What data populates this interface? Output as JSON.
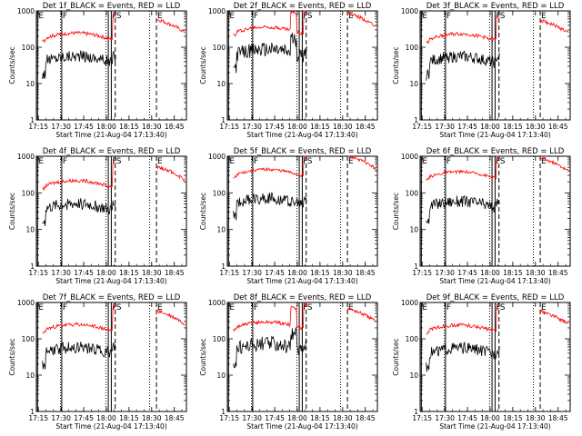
{
  "figure": {
    "background": "#ffffff",
    "axis_color": "#000000",
    "events_color": "#000000",
    "lld_color": "#ff0000"
  },
  "chart_data": [
    {
      "type": "line",
      "title": "Det 1f_BLACK = Events, RED = LLD",
      "xlabel": "Start Time (21-Aug-04 17:13:40)",
      "ylabel": "Counts/sec",
      "yscale": "log",
      "ylim": [
        1,
        1000
      ],
      "xticks": [
        "17:15",
        "17:30",
        "17:45",
        "18:00",
        "18:15",
        "18:30",
        "18:45"
      ],
      "yticks": [
        "1",
        "10",
        "100",
        "1000"
      ],
      "markers": [
        "E",
        "F",
        "F",
        "S",
        "E"
      ],
      "series": [
        {
          "name": "Events",
          "color": "#000000",
          "base": 40,
          "noise": 0.16,
          "spike": 0
        },
        {
          "name": "LLD",
          "color": "#ff0000",
          "base": 170,
          "noise": 0.05,
          "spike": 0
        }
      ]
    },
    {
      "type": "line",
      "title": "Det 2f_BLACK = Events, RED = LLD",
      "xlabel": "Start Time (21-Aug-04 17:13:40)",
      "ylabel": "Counts/sec",
      "yscale": "log",
      "ylim": [
        1,
        1000
      ],
      "xticks": [
        "17:15",
        "17:30",
        "17:45",
        "18:00",
        "18:15",
        "18:30",
        "18:45"
      ],
      "yticks": [
        "1",
        "10",
        "100",
        "1000"
      ],
      "markers": [
        "E",
        "F",
        "F",
        "S",
        "E"
      ],
      "series": [
        {
          "name": "Events",
          "color": "#000000",
          "base": 60,
          "noise": 0.2,
          "spike": 1
        },
        {
          "name": "LLD",
          "color": "#ff0000",
          "base": 250,
          "noise": 0.05,
          "spike": 1
        }
      ]
    },
    {
      "type": "line",
      "title": "Det 3f_BLACK = Events, RED = LLD",
      "xlabel": "Start Time (21-Aug-04 17:13:40)",
      "ylabel": "Counts/sec",
      "yscale": "log",
      "ylim": [
        1,
        1000
      ],
      "xticks": [
        "17:15",
        "17:30",
        "17:45",
        "18:00",
        "18:15",
        "18:30",
        "18:45"
      ],
      "yticks": [
        "1",
        "10",
        "100",
        "1000"
      ],
      "markers": [
        "E",
        "F",
        "F",
        "S",
        "E"
      ],
      "series": [
        {
          "name": "Events",
          "color": "#000000",
          "base": 38,
          "noise": 0.16,
          "spike": 0
        },
        {
          "name": "LLD",
          "color": "#ff0000",
          "base": 160,
          "noise": 0.05,
          "spike": 0
        }
      ]
    },
    {
      "type": "line",
      "title": "Det 4f_BLACK = Events, RED = LLD",
      "xlabel": "Start Time (21-Aug-04 17:13:40)",
      "ylabel": "Counts/sec",
      "yscale": "log",
      "ylim": [
        1,
        1000
      ],
      "xticks": [
        "17:15",
        "17:30",
        "17:45",
        "18:00",
        "18:15",
        "18:30",
        "18:45"
      ],
      "yticks": [
        "1",
        "10",
        "100",
        "1000"
      ],
      "markers": [
        "E",
        "F",
        "F",
        "S",
        "E"
      ],
      "series": [
        {
          "name": "Events",
          "color": "#000000",
          "base": 35,
          "noise": 0.16,
          "spike": 0
        },
        {
          "name": "LLD",
          "color": "#ff0000",
          "base": 150,
          "noise": 0.05,
          "spike": 0
        }
      ]
    },
    {
      "type": "line",
      "title": "Det 5f_BLACK = Events, RED = LLD",
      "xlabel": "Start Time (21-Aug-04 17:13:40)",
      "ylabel": "Counts/sec",
      "yscale": "log",
      "ylim": [
        1,
        1000
      ],
      "xticks": [
        "17:15",
        "17:30",
        "17:45",
        "18:00",
        "18:15",
        "18:30",
        "18:45"
      ],
      "yticks": [
        "1",
        "10",
        "100",
        "1000"
      ],
      "markers": [
        "E",
        "F",
        "F",
        "S",
        "E"
      ],
      "series": [
        {
          "name": "Events",
          "color": "#000000",
          "base": 50,
          "noise": 0.16,
          "spike": 0
        },
        {
          "name": "LLD",
          "color": "#ff0000",
          "base": 300,
          "noise": 0.04,
          "spike": 0
        }
      ]
    },
    {
      "type": "line",
      "title": "Det 6f_BLACK = Events, RED = LLD",
      "xlabel": "Start Time (21-Aug-04 17:13:40)",
      "ylabel": "Counts/sec",
      "yscale": "log",
      "ylim": [
        1,
        1000
      ],
      "xticks": [
        "17:15",
        "17:30",
        "17:45",
        "18:00",
        "18:15",
        "18:30",
        "18:45"
      ],
      "yticks": [
        "1",
        "10",
        "100",
        "1000"
      ],
      "markers": [
        "E",
        "F",
        "F",
        "S",
        "E"
      ],
      "series": [
        {
          "name": "Events",
          "color": "#000000",
          "base": 40,
          "noise": 0.16,
          "spike": 0
        },
        {
          "name": "LLD",
          "color": "#ff0000",
          "base": 260,
          "noise": 0.04,
          "spike": 0
        }
      ]
    },
    {
      "type": "line",
      "title": "Det 7f_BLACK = Events, RED = LLD",
      "xlabel": "Start Time (21-Aug-04 17:13:40)",
      "ylabel": "Counts/sec",
      "yscale": "log",
      "ylim": [
        1,
        1000
      ],
      "xticks": [
        "17:15",
        "17:30",
        "17:45",
        "18:00",
        "18:15",
        "18:30",
        "18:45"
      ],
      "yticks": [
        "1",
        "10",
        "100",
        "1000"
      ],
      "markers": [
        "E",
        "F",
        "F",
        "S",
        "E"
      ],
      "series": [
        {
          "name": "Events",
          "color": "#000000",
          "base": 40,
          "noise": 0.16,
          "spike": 0
        },
        {
          "name": "LLD",
          "color": "#ff0000",
          "base": 170,
          "noise": 0.05,
          "spike": 0
        }
      ]
    },
    {
      "type": "line",
      "title": "Det 8f_BLACK = Events, RED = LLD",
      "xlabel": "Start Time (21-Aug-04 17:13:40)",
      "ylabel": "Counts/sec",
      "yscale": "log",
      "ylim": [
        1,
        1000
      ],
      "xticks": [
        "17:15",
        "17:30",
        "17:45",
        "18:00",
        "18:15",
        "18:30",
        "18:45"
      ],
      "yticks": [
        "1",
        "10",
        "100",
        "1000"
      ],
      "markers": [
        "E",
        "F",
        "F",
        "S",
        "E"
      ],
      "series": [
        {
          "name": "Events",
          "color": "#000000",
          "base": 50,
          "noise": 0.2,
          "spike": 1
        },
        {
          "name": "LLD",
          "color": "#ff0000",
          "base": 200,
          "noise": 0.05,
          "spike": 1
        }
      ]
    },
    {
      "type": "line",
      "title": "Det 9f_BLACK = Events, RED = LLD",
      "xlabel": "Start Time (21-Aug-04 17:13:40)",
      "ylabel": "Counts/sec",
      "yscale": "log",
      "ylim": [
        1,
        1000
      ],
      "xticks": [
        "17:15",
        "17:30",
        "17:45",
        "18:00",
        "18:15",
        "18:30",
        "18:45"
      ],
      "yticks": [
        "1",
        "10",
        "100",
        "1000"
      ],
      "markers": [
        "E",
        "F",
        "F",
        "S",
        "E"
      ],
      "series": [
        {
          "name": "Events",
          "color": "#000000",
          "base": 38,
          "noise": 0.16,
          "spike": 0
        },
        {
          "name": "LLD",
          "color": "#ff0000",
          "base": 165,
          "noise": 0.05,
          "spike": 0
        }
      ]
    }
  ]
}
